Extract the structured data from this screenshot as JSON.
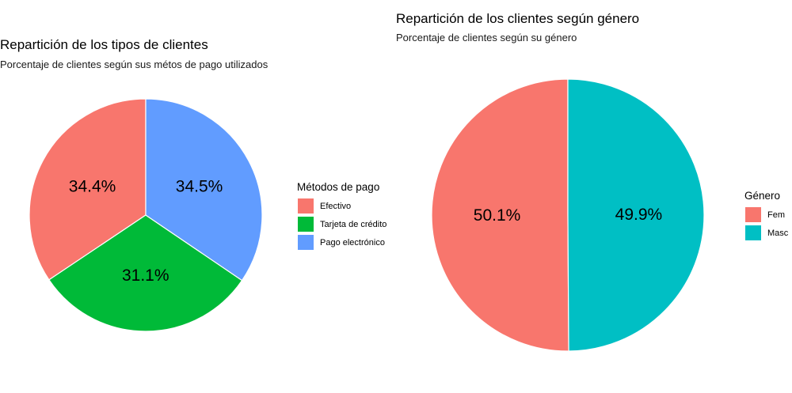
{
  "chart_data": [
    {
      "type": "pie",
      "title": "Repartición de los tipos de clientes",
      "subtitle": "Porcentaje de clientes según sus métos de pago utilizados",
      "legend": {
        "title": "Métodos de pago",
        "placement": "right"
      },
      "categories": [
        "Efectivo",
        "Tarjeta de crédito",
        "Pago electrónico"
      ],
      "values": [
        34.4,
        31.1,
        34.5
      ],
      "value_labels": [
        "34.4%",
        "31.1%",
        "34.5%"
      ],
      "colors": [
        "#F8766D",
        "#00BA38",
        "#619CFF"
      ]
    },
    {
      "type": "pie",
      "title": "Repartición de los clientes según género",
      "subtitle": "Porcentaje de clientes según su género",
      "legend": {
        "title": "Género",
        "placement": "right"
      },
      "categories": [
        "Fem",
        "Masc"
      ],
      "values": [
        50.1,
        49.9
      ],
      "value_labels": [
        "50.1%",
        "49.9%"
      ],
      "colors": [
        "#F8766D",
        "#00BFC4"
      ]
    }
  ]
}
